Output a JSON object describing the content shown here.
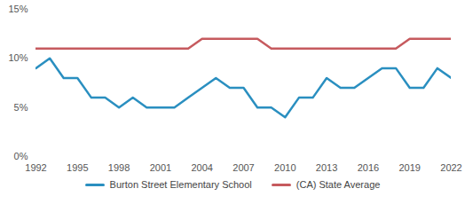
{
  "chart_data": {
    "type": "line",
    "x": [
      1992,
      1993,
      1994,
      1995,
      1996,
      1997,
      1998,
      1999,
      2000,
      2001,
      2002,
      2003,
      2004,
      2005,
      2006,
      2007,
      2008,
      2009,
      2010,
      2011,
      2012,
      2013,
      2014,
      2015,
      2016,
      2017,
      2018,
      2019,
      2020,
      2021,
      2022
    ],
    "series": [
      {
        "name": "Burton Street Elementary School",
        "color": "#2a8fc0",
        "values": [
          9,
          10,
          8,
          8,
          6,
          6,
          5,
          6,
          5,
          5,
          5,
          6,
          7,
          8,
          7,
          7,
          5,
          5,
          4,
          6,
          6,
          8,
          7,
          7,
          8,
          9,
          9,
          7,
          7,
          9,
          8
        ]
      },
      {
        "name": "(CA) State Average",
        "color": "#c65a5e",
        "values": [
          11,
          11,
          11,
          11,
          11,
          11,
          11,
          11,
          11,
          11,
          11,
          11,
          12,
          12,
          12,
          12,
          12,
          11,
          11,
          11,
          11,
          11,
          11,
          11,
          11,
          11,
          11,
          12,
          12,
          12,
          12
        ]
      }
    ],
    "xlim": [
      1992,
      2022
    ],
    "xticks": [
      1992,
      1995,
      1998,
      2001,
      2004,
      2007,
      2010,
      2013,
      2016,
      2019,
      2022
    ],
    "ylim": [
      0,
      15
    ],
    "yticks": [
      {
        "value": 0,
        "label": "0%"
      },
      {
        "value": 5,
        "label": "5%"
      },
      {
        "value": 10,
        "label": "10%"
      },
      {
        "value": 15,
        "label": "15%"
      }
    ],
    "grid": false,
    "legend": "bottom"
  }
}
